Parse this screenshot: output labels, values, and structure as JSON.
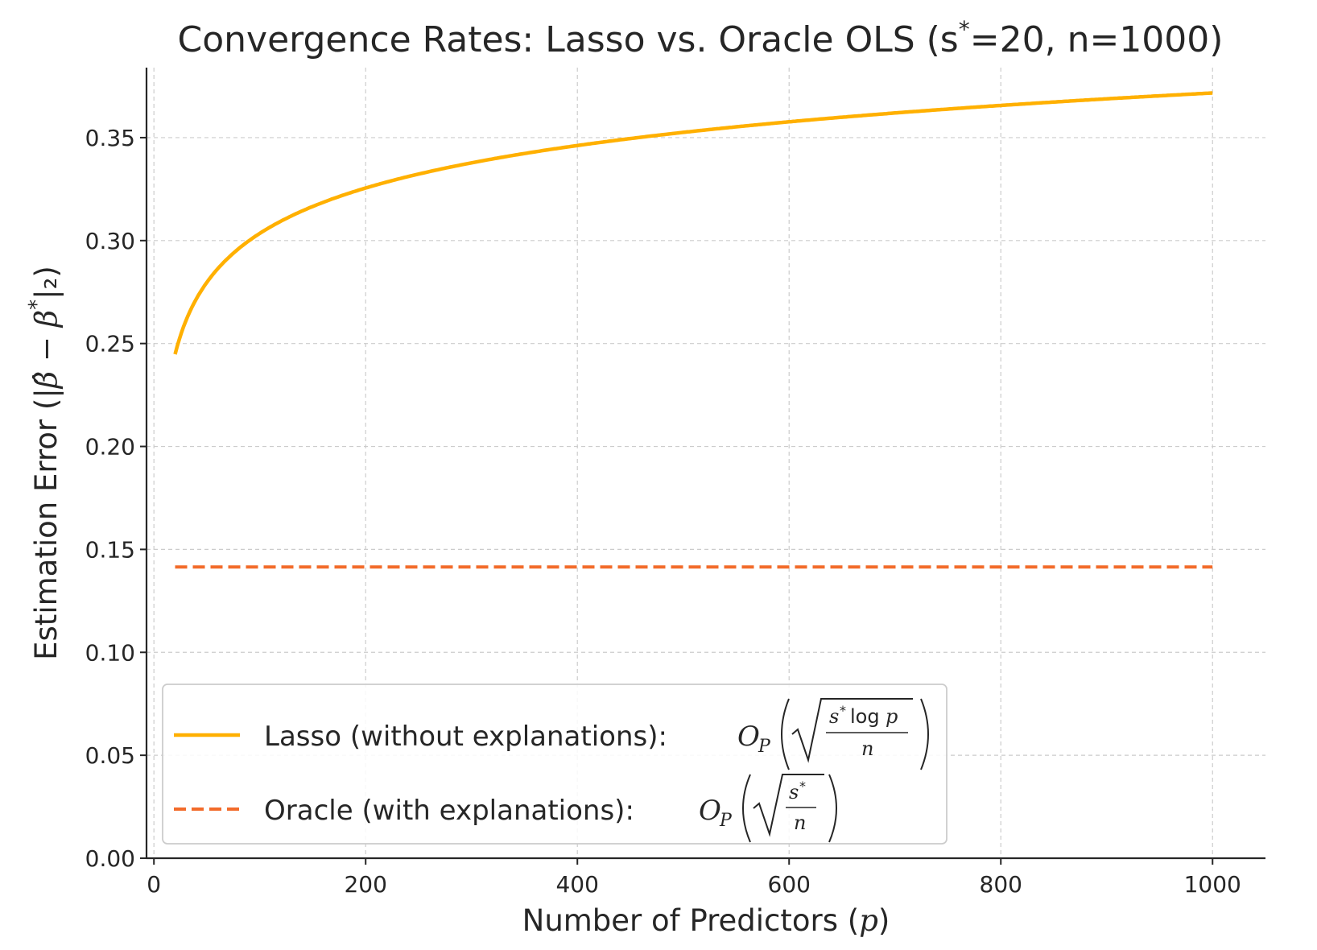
{
  "chart_data": {
    "type": "line",
    "title": "Convergence Rates: Lasso vs. Oracle OLS (s* = 20, n = 1000)",
    "title_parts": {
      "prefix": "Convergence Rates: Lasso vs. Oracle OLS (s",
      "sup": "*",
      "suffix": "=20, n=1000)"
    },
    "xlabel": "Number of Predictors (p)",
    "xlabel_parts": {
      "prefix": "Number of Predictors (",
      "var": "p",
      "suffix": ")"
    },
    "ylabel": "Estimation Error (|β̂ − β*|₂)",
    "ylabel_parts": {
      "prefix": "Estimation Error (|",
      "var": "β̂ − β",
      "sup": "*",
      "suffix": "|₂)"
    },
    "xlim": [
      -7,
      1050
    ],
    "ylim": [
      0,
      0.384
    ],
    "xticks": [
      0,
      200,
      400,
      600,
      800,
      1000
    ],
    "yticks": [
      0.0,
      0.05,
      0.1,
      0.15,
      0.2,
      0.25,
      0.3,
      0.35
    ],
    "grid": true,
    "legend_position": "lower-left",
    "series": [
      {
        "name": "Lasso (without explanations): O_P(√(s* log p / n))",
        "legend_text": "Lasso (without explanations): ",
        "color": "#FFB000",
        "style": "solid",
        "formula": "sqrt(s*log(p)/n)",
        "x_range": [
          20,
          1000
        ],
        "points": [
          [
            20,
            0.245
          ],
          [
            50,
            0.28
          ],
          [
            100,
            0.303
          ],
          [
            200,
            0.326
          ],
          [
            400,
            0.346
          ],
          [
            600,
            0.358
          ],
          [
            800,
            0.366
          ],
          [
            1000,
            0.372
          ]
        ]
      },
      {
        "name": "Oracle (with explanations): O_P(√(s* / n))",
        "legend_text": "Oracle (with explanations): ",
        "color": "#F26B2A",
        "style": "dashed",
        "formula": "sqrt(s/n)",
        "x_range": [
          20,
          1000
        ],
        "points": [
          [
            20,
            0.1414
          ],
          [
            1000,
            0.1414
          ]
        ]
      }
    ],
    "params": {
      "s": 20,
      "n": 1000
    }
  }
}
